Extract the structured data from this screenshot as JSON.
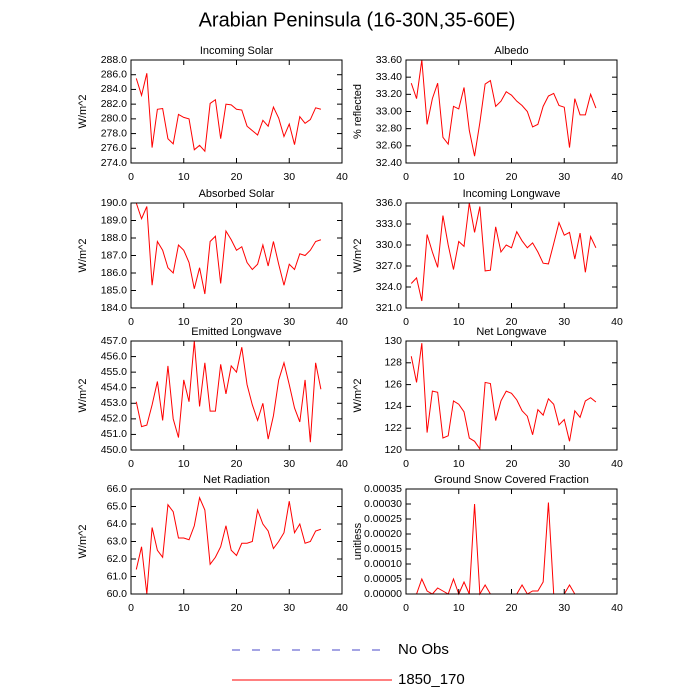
{
  "title": "Arabian Peninsula (16-30N,35-60E)",
  "legend": [
    {
      "name": "No Obs",
      "color": "#4a4ac8",
      "dashed": true
    },
    {
      "name": "1850_170",
      "color": "#ff0000",
      "dashed": false
    }
  ],
  "chart_data": [
    {
      "type": "line",
      "title": "Incoming Solar",
      "y_label": "W/m^2",
      "color": "#ff0000",
      "x": [
        1,
        2,
        3,
        4,
        5,
        6,
        7,
        8,
        9,
        10,
        11,
        12,
        13,
        14,
        15,
        16,
        17,
        18,
        19,
        20,
        21,
        22,
        23,
        24,
        25,
        26,
        27,
        28,
        29,
        30,
        31,
        32,
        33,
        34,
        35,
        36
      ],
      "values": [
        285.5,
        283.2,
        286.2,
        276.1,
        281.3,
        281.4,
        277.3,
        276.6,
        280.6,
        280.2,
        280.0,
        275.8,
        276.4,
        275.6,
        282.1,
        282.6,
        277.3,
        282.0,
        281.9,
        281.3,
        281.2,
        279.0,
        278.4,
        277.8,
        279.8,
        279.0,
        281.6,
        280.1,
        277.6,
        279.3,
        276.5,
        280.3,
        279.4,
        279.9,
        281.5,
        281.3
      ],
      "xlim": [
        0,
        40
      ],
      "xticks": [
        0,
        10,
        20,
        30,
        40
      ],
      "ylim": [
        274,
        288
      ],
      "yticks": [
        {
          "value": 274,
          "label": "274.0"
        },
        {
          "value": 276,
          "label": "276.0"
        },
        {
          "value": 278,
          "label": "278.0"
        },
        {
          "value": 280,
          "label": "280.0"
        },
        {
          "value": 282,
          "label": "282.0"
        },
        {
          "value": 284,
          "label": "284.0"
        },
        {
          "value": 286,
          "label": "286.0"
        },
        {
          "value": 288,
          "label": "288.0"
        }
      ]
    },
    {
      "type": "line",
      "title": "Albedo",
      "y_label": "% reflected",
      "color": "#ff0000",
      "x": [
        1,
        2,
        3,
        4,
        5,
        6,
        7,
        8,
        9,
        10,
        11,
        12,
        13,
        14,
        15,
        16,
        17,
        18,
        19,
        20,
        21,
        22,
        23,
        24,
        25,
        26,
        27,
        28,
        29,
        30,
        31,
        32,
        33,
        34,
        35,
        36
      ],
      "values": [
        33.33,
        33.15,
        33.6,
        32.85,
        33.15,
        33.33,
        32.7,
        32.62,
        33.06,
        33.03,
        33.28,
        32.78,
        32.48,
        32.87,
        33.32,
        33.36,
        33.06,
        33.12,
        33.23,
        33.19,
        33.12,
        33.07,
        33.0,
        32.82,
        32.85,
        33.06,
        33.18,
        33.21,
        33.07,
        33.05,
        32.58,
        33.15,
        32.96,
        32.96,
        33.2,
        33.04
      ],
      "xlim": [
        0,
        40
      ],
      "xticks": [
        0,
        10,
        20,
        30,
        40
      ],
      "ylim": [
        32.4,
        33.6
      ],
      "yticks": [
        {
          "value": 32.4,
          "label": "32.40"
        },
        {
          "value": 32.6,
          "label": "32.60"
        },
        {
          "value": 32.8,
          "label": "32.80"
        },
        {
          "value": 33.0,
          "label": "33.00"
        },
        {
          "value": 33.2,
          "label": "33.20"
        },
        {
          "value": 33.4,
          "label": "33.40"
        },
        {
          "value": 33.6,
          "label": "33.60"
        }
      ]
    },
    {
      "type": "line",
      "title": "Absorbed Solar",
      "y_label": "W/m^2",
      "color": "#ff0000",
      "x": [
        1,
        2,
        3,
        4,
        5,
        6,
        7,
        8,
        9,
        10,
        11,
        12,
        13,
        14,
        15,
        16,
        17,
        18,
        19,
        20,
        21,
        22,
        23,
        24,
        25,
        26,
        27,
        28,
        29,
        30,
        31,
        32,
        33,
        34,
        35,
        36
      ],
      "values": [
        190.0,
        189.1,
        189.8,
        185.3,
        187.8,
        187.3,
        186.3,
        186.0,
        187.6,
        187.3,
        186.6,
        185.1,
        186.3,
        184.8,
        187.8,
        188.1,
        185.4,
        188.4,
        187.9,
        187.3,
        187.5,
        186.6,
        186.2,
        186.5,
        187.6,
        186.4,
        187.8,
        186.5,
        185.3,
        186.5,
        186.2,
        187.1,
        187.0,
        187.3,
        187.8,
        187.9
      ],
      "xlim": [
        0,
        40
      ],
      "xticks": [
        0,
        10,
        20,
        30,
        40
      ],
      "ylim": [
        184,
        190
      ],
      "yticks": [
        {
          "value": 184,
          "label": "184.0"
        },
        {
          "value": 185,
          "label": "185.0"
        },
        {
          "value": 186,
          "label": "186.0"
        },
        {
          "value": 187,
          "label": "187.0"
        },
        {
          "value": 188,
          "label": "188.0"
        },
        {
          "value": 189,
          "label": "189.0"
        },
        {
          "value": 190,
          "label": "190.0"
        }
      ]
    },
    {
      "type": "line",
      "title": "Incoming Longwave",
      "y_label": "W/m^2",
      "color": "#ff0000",
      "x": [
        1,
        2,
        3,
        4,
        5,
        6,
        7,
        8,
        9,
        10,
        11,
        12,
        13,
        14,
        15,
        16,
        17,
        18,
        19,
        20,
        21,
        22,
        23,
        24,
        25,
        26,
        27,
        28,
        29,
        30,
        31,
        32,
        33,
        34,
        35,
        36
      ],
      "values": [
        324.5,
        325.3,
        322.0,
        331.5,
        329.0,
        326.8,
        334.2,
        330.0,
        326.5,
        330.5,
        329.8,
        336.0,
        331.8,
        335.5,
        326.3,
        326.4,
        332.6,
        329.0,
        330.0,
        329.6,
        331.9,
        330.6,
        329.6,
        330.3,
        329.0,
        327.4,
        327.3,
        330.2,
        333.2,
        331.4,
        331.8,
        328.0,
        331.7,
        326.1,
        331.2,
        329.6
      ],
      "xlim": [
        0,
        40
      ],
      "xticks": [
        0,
        10,
        20,
        30,
        40
      ],
      "ylim": [
        321,
        336
      ],
      "yticks": [
        {
          "value": 321,
          "label": "321.0"
        },
        {
          "value": 324,
          "label": "324.0"
        },
        {
          "value": 327,
          "label": "327.0"
        },
        {
          "value": 330,
          "label": "330.0"
        },
        {
          "value": 333,
          "label": "333.0"
        },
        {
          "value": 336,
          "label": "336.0"
        }
      ]
    },
    {
      "type": "line",
      "title": "Emitted Longwave",
      "y_label": "W/m^2",
      "color": "#ff0000",
      "x": [
        1,
        2,
        3,
        4,
        5,
        6,
        7,
        8,
        9,
        10,
        11,
        12,
        13,
        14,
        15,
        16,
        17,
        18,
        19,
        20,
        21,
        22,
        23,
        24,
        25,
        26,
        27,
        28,
        29,
        30,
        31,
        32,
        33,
        34,
        35,
        36
      ],
      "values": [
        453.1,
        451.5,
        451.6,
        452.9,
        454.4,
        451.9,
        455.4,
        452.0,
        450.8,
        454.5,
        453.1,
        457.0,
        452.8,
        455.6,
        452.5,
        452.5,
        455.5,
        453.6,
        455.4,
        455.0,
        456.6,
        454.2,
        452.9,
        451.9,
        453.0,
        450.7,
        452.2,
        454.5,
        455.6,
        454.2,
        452.7,
        451.8,
        454.5,
        450.5,
        455.6,
        453.9
      ],
      "xlim": [
        0,
        40
      ],
      "xticks": [
        0,
        10,
        20,
        30,
        40
      ],
      "ylim": [
        450,
        457
      ],
      "yticks": [
        {
          "value": 450,
          "label": "450.0"
        },
        {
          "value": 451,
          "label": "451.0"
        },
        {
          "value": 452,
          "label": "452.0"
        },
        {
          "value": 453,
          "label": "453.0"
        },
        {
          "value": 454,
          "label": "454.0"
        },
        {
          "value": 455,
          "label": "455.0"
        },
        {
          "value": 456,
          "label": "456.0"
        },
        {
          "value": 457,
          "label": "457.0"
        }
      ]
    },
    {
      "type": "line",
      "title": "Net Longwave",
      "y_label": "W/m^2",
      "color": "#ff0000",
      "x": [
        1,
        2,
        3,
        4,
        5,
        6,
        7,
        8,
        9,
        10,
        11,
        12,
        13,
        14,
        15,
        16,
        17,
        18,
        19,
        20,
        21,
        22,
        23,
        24,
        25,
        26,
        27,
        28,
        29,
        30,
        31,
        32,
        33,
        34,
        35,
        36
      ],
      "values": [
        128.6,
        126.2,
        129.8,
        121.6,
        125.4,
        125.3,
        121.1,
        121.3,
        124.5,
        124.2,
        123.5,
        121.1,
        120.8,
        120.1,
        126.2,
        126.1,
        122.7,
        124.5,
        125.4,
        125.2,
        124.6,
        123.6,
        123.1,
        121.4,
        123.7,
        123.2,
        124.7,
        124.2,
        122.3,
        122.8,
        120.8,
        123.6,
        123.0,
        124.5,
        124.8,
        124.4
      ],
      "xlim": [
        0,
        40
      ],
      "xticks": [
        0,
        10,
        20,
        30,
        40
      ],
      "ylim": [
        120,
        130
      ],
      "yticks": [
        120,
        122,
        124,
        126,
        128,
        130
      ]
    },
    {
      "type": "line",
      "title": "Net Radiation",
      "y_label": "W/m^2",
      "color": "#ff0000",
      "x": [
        1,
        2,
        3,
        4,
        5,
        6,
        7,
        8,
        9,
        10,
        11,
        12,
        13,
        14,
        15,
        16,
        17,
        18,
        19,
        20,
        21,
        22,
        23,
        24,
        25,
        26,
        27,
        28,
        29,
        30,
        31,
        32,
        33,
        34,
        35,
        36
      ],
      "values": [
        61.4,
        62.7,
        60.0,
        63.8,
        62.5,
        62.1,
        65.1,
        64.7,
        63.2,
        63.2,
        63.1,
        63.9,
        65.5,
        64.8,
        61.7,
        62.1,
        62.7,
        63.9,
        62.5,
        62.2,
        62.9,
        62.9,
        63.0,
        64.8,
        64.0,
        63.6,
        62.6,
        63.0,
        63.5,
        65.3,
        63.5,
        64.0,
        62.9,
        63.0,
        63.6,
        63.7
      ],
      "xlim": [
        0,
        40
      ],
      "xticks": [
        0,
        10,
        20,
        30,
        40
      ],
      "ylim": [
        60,
        66
      ],
      "yticks": [
        {
          "value": 60,
          "label": "60.0"
        },
        {
          "value": 61,
          "label": "61.0"
        },
        {
          "value": 62,
          "label": "62.0"
        },
        {
          "value": 63,
          "label": "63.0"
        },
        {
          "value": 64,
          "label": "64.0"
        },
        {
          "value": 65,
          "label": "65.0"
        },
        {
          "value": 66,
          "label": "66.0"
        }
      ]
    },
    {
      "type": "line",
      "title": "Ground Snow Covered Fraction",
      "y_label": "unitless",
      "color": "#ff0000",
      "x": [
        1,
        2,
        3,
        4,
        5,
        6,
        7,
        8,
        9,
        10,
        11,
        12,
        13,
        14,
        15,
        16,
        17,
        18,
        19,
        20,
        21,
        22,
        23,
        24,
        25,
        26,
        27,
        28,
        29,
        30,
        31,
        32,
        33
      ],
      "values": [
        0,
        0,
        5e-05,
        1e-05,
        0,
        2e-05,
        1e-05,
        0,
        5e-05,
        0,
        4e-05,
        0,
        0.0003,
        0,
        3e-05,
        0,
        0,
        0,
        0,
        0,
        0,
        3e-05,
        0,
        1e-05,
        1e-05,
        4e-05,
        0.000305,
        0,
        0,
        0,
        3e-05,
        0,
        0
      ],
      "xlim": [
        0,
        40
      ],
      "xticks": [
        0,
        10,
        20,
        30,
        40
      ],
      "ylim": [
        0,
        0.00035
      ],
      "yticks": [
        {
          "value": 0,
          "label": "0.00000"
        },
        {
          "value": 5e-05,
          "label": "0.00005"
        },
        {
          "value": 0.0001,
          "label": "0.00010"
        },
        {
          "value": 0.00015,
          "label": "0.00015"
        },
        {
          "value": 0.0002,
          "label": "0.00020"
        },
        {
          "value": 0.00025,
          "label": "0.00025"
        },
        {
          "value": 0.0003,
          "label": "0.00030"
        },
        {
          "value": 0.00035,
          "label": "0.00035"
        }
      ]
    }
  ]
}
